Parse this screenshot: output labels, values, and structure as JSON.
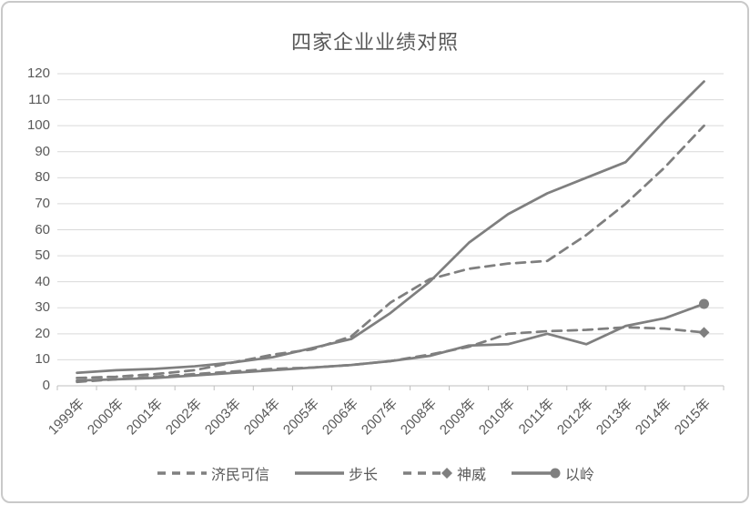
{
  "chart": {
    "colors": {
      "series": "#7f7f7f",
      "grid": "#d9d9d9",
      "axis": "#bfbfbf",
      "text": "#595959",
      "frame_border": "#c9c9c9",
      "background": "#ffffff"
    }
  },
  "chart_data": {
    "type": "line",
    "title": "四家企业业绩对照",
    "categories": [
      "1999年",
      "2000年",
      "2001年",
      "2002年",
      "2003年",
      "2004年",
      "2005年",
      "2006年",
      "2007年",
      "2008年",
      "2009年",
      "2010年",
      "2011年",
      "2012年",
      "2013年",
      "2014年",
      "2015年"
    ],
    "series": [
      {
        "id": "jiminkexin",
        "name": "济民可信",
        "line": "dashed",
        "marker": "none",
        "values": [
          3,
          3.5,
          4.5,
          6,
          9,
          12,
          14,
          19,
          32,
          41,
          45,
          47,
          48,
          58,
          70,
          84,
          100
        ]
      },
      {
        "id": "buchang",
        "name": "步长",
        "line": "solid",
        "marker": "none",
        "values": [
          5,
          6,
          6.5,
          7.5,
          9,
          11,
          14.5,
          18,
          28,
          40,
          55,
          66,
          74,
          80,
          86,
          102,
          117
        ]
      },
      {
        "id": "shenwei",
        "name": "神威",
        "line": "dashed",
        "marker": "diamond",
        "values": [
          1.5,
          2.5,
          3.5,
          4.5,
          5.5,
          6.5,
          7,
          8,
          9.5,
          12,
          15,
          20,
          21,
          21.5,
          22.5,
          22,
          20.5
        ]
      },
      {
        "id": "yiling",
        "name": "以岭",
        "line": "solid",
        "marker": "circle",
        "values": [
          2,
          2.5,
          3,
          4,
          5,
          6,
          7,
          8,
          9.5,
          11.5,
          15.5,
          16,
          20,
          16,
          23,
          26,
          31.5
        ]
      }
    ],
    "ylim": [
      0,
      120
    ],
    "ytick_step": 10,
    "ytick_labels": [
      "0",
      "10",
      "20",
      "30",
      "40",
      "50",
      "60",
      "70",
      "80",
      "90",
      "100",
      "110",
      "120"
    ],
    "grid": true,
    "legend_position": "bottom",
    "marker_note": "diamond/circle marker shown on final data point only"
  }
}
